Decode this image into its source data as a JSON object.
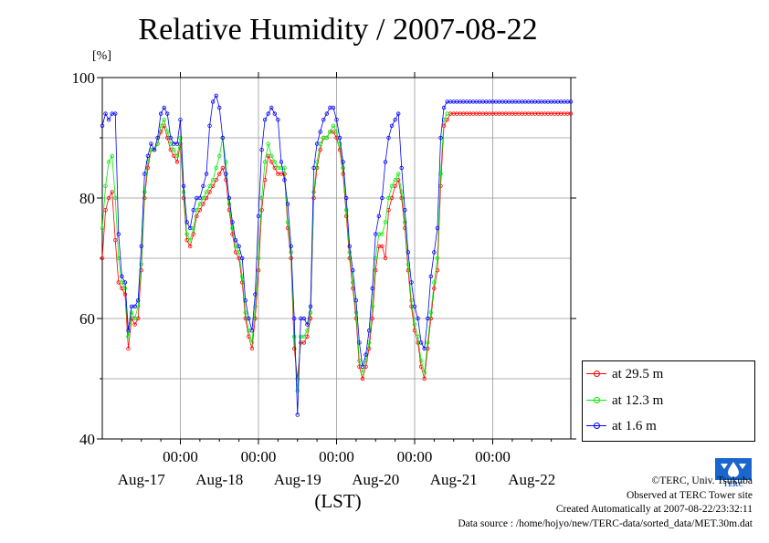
{
  "chart_data": {
    "type": "line",
    "title": "Relative Humidity / 2007-08-22",
    "ylabel": "[%]",
    "xlabel": "(LST)",
    "ylim": [
      40,
      100
    ],
    "y_ticks": [
      40,
      60,
      80,
      100
    ],
    "x_range_hours": [
      0,
      144
    ],
    "x_tick_labels": [
      "00:00",
      "00:00",
      "00:00",
      "00:00",
      "00:00"
    ],
    "x_date_labels": [
      "Aug-17",
      "Aug-18",
      "Aug-19",
      "Aug-20",
      "Aug-21",
      "Aug-22"
    ],
    "legend_position": "bottom-right-outside",
    "grid": true,
    "series": [
      {
        "name": "at 29.5 m",
        "color": "#ff0000",
        "x": [
          0,
          1,
          2,
          3,
          4,
          5,
          6,
          7,
          8,
          9,
          10,
          11,
          12,
          13,
          14,
          15,
          16,
          17,
          18,
          19,
          20,
          21,
          22,
          23,
          24,
          25,
          26,
          27,
          28,
          29,
          30,
          31,
          32,
          33,
          34,
          35,
          36,
          37,
          38,
          39,
          40,
          41,
          42,
          43,
          44,
          45,
          46,
          47,
          48,
          49,
          50,
          51,
          52,
          53,
          54,
          55,
          56,
          57,
          58,
          59,
          60,
          61,
          62,
          63,
          64,
          65,
          66,
          67,
          68,
          69,
          70,
          71,
          72,
          73,
          74,
          75,
          76,
          77,
          78,
          79,
          80,
          81,
          82,
          83,
          84,
          85,
          86,
          87,
          88,
          89,
          90,
          91,
          92,
          93,
          94,
          95,
          96,
          97,
          98,
          99,
          100,
          101,
          102,
          103,
          104,
          105,
          106,
          107,
          108,
          109,
          110,
          111,
          112,
          113,
          114,
          115,
          116,
          117,
          118,
          119,
          120,
          121,
          122,
          123,
          124,
          125,
          126,
          127,
          128,
          129,
          130,
          131,
          132,
          133,
          134,
          135,
          136,
          137,
          138,
          139,
          140,
          141,
          142,
          143,
          144
        ],
        "values": [
          70,
          78,
          80,
          81,
          73,
          66,
          65,
          64,
          55,
          60,
          59,
          60,
          68,
          80,
          85,
          88,
          88,
          89,
          91,
          92,
          90,
          88,
          87,
          86,
          89,
          80,
          73,
          72,
          74,
          77,
          78,
          79,
          80,
          81,
          82,
          83,
          84,
          85,
          83,
          78,
          74,
          71,
          70,
          66,
          60,
          57,
          55,
          60,
          68,
          78,
          83,
          87,
          86,
          85,
          84,
          84,
          84,
          75,
          70,
          55,
          50,
          56,
          56,
          57,
          60,
          80,
          85,
          88,
          90,
          90,
          91,
          91,
          90,
          88,
          84,
          77,
          70,
          65,
          60,
          52,
          50,
          52,
          55,
          60,
          68,
          72,
          72,
          70,
          78,
          80,
          82,
          83,
          80,
          75,
          68,
          62,
          58,
          56,
          52,
          50,
          55,
          60,
          65,
          68,
          82,
          92,
          93,
          94,
          94,
          94,
          94,
          94,
          94,
          94,
          94,
          94,
          94,
          94,
          94,
          94,
          94,
          94,
          94,
          94,
          94,
          94,
          94,
          94,
          94,
          94,
          94,
          94,
          94,
          94,
          94,
          94,
          94,
          94,
          94,
          94,
          94,
          94,
          94,
          94,
          94
        ]
      },
      {
        "name": "at 12.3 m",
        "color": "#00ee00",
        "x": [
          0,
          1,
          2,
          3,
          4,
          5,
          6,
          7,
          8,
          9,
          10,
          11,
          12,
          13,
          14,
          15,
          16,
          17,
          18,
          19,
          20,
          21,
          22,
          23,
          24,
          25,
          26,
          27,
          28,
          29,
          30,
          31,
          32,
          33,
          34,
          35,
          36,
          37,
          38,
          39,
          40,
          41,
          42,
          43,
          44,
          45,
          46,
          47,
          48,
          49,
          50,
          51,
          52,
          53,
          54,
          55,
          56,
          57,
          58,
          59,
          60,
          61,
          62,
          63,
          64,
          65,
          66,
          67,
          68,
          69,
          70,
          71,
          72,
          73,
          74,
          75,
          76,
          77,
          78,
          79,
          80,
          81,
          82,
          83,
          84,
          85,
          86,
          87,
          88,
          89,
          90,
          91,
          92,
          93,
          94,
          95,
          96,
          97,
          98,
          99,
          100,
          101,
          102,
          103,
          104,
          105,
          106
        ],
        "values": [
          75,
          82,
          86,
          87,
          80,
          70,
          66,
          65,
          57,
          61,
          60,
          62,
          69,
          81,
          86,
          88,
          88,
          89,
          92,
          93,
          91,
          89,
          88,
          87,
          90,
          81,
          74,
          73,
          75,
          78,
          79,
          80,
          81,
          82,
          83,
          85,
          87,
          90,
          86,
          79,
          75,
          72,
          71,
          67,
          61,
          58,
          56,
          62,
          70,
          80,
          86,
          89,
          87,
          86,
          85,
          85,
          85,
          76,
          71,
          57,
          48,
          57,
          57,
          58,
          61,
          81,
          86,
          89,
          90,
          90,
          91,
          92,
          91,
          89,
          85,
          78,
          71,
          66,
          61,
          53,
          51,
          53,
          56,
          62,
          70,
          74,
          74,
          76,
          80,
          82,
          83,
          84,
          81,
          76,
          69,
          63,
          59,
          57,
          53,
          51,
          56,
          61,
          66,
          70,
          84,
          93,
          94
        ]
      },
      {
        "name": "at 1.6 m",
        "color": "#0000ff",
        "x": [
          0,
          1,
          2,
          3,
          4,
          5,
          6,
          7,
          8,
          9,
          10,
          11,
          12,
          13,
          14,
          15,
          16,
          17,
          18,
          19,
          20,
          21,
          22,
          23,
          24,
          25,
          26,
          27,
          28,
          29,
          30,
          31,
          32,
          33,
          34,
          35,
          36,
          37,
          38,
          39,
          40,
          41,
          42,
          43,
          44,
          45,
          46,
          47,
          48,
          49,
          50,
          51,
          52,
          53,
          54,
          55,
          56,
          57,
          58,
          59,
          60,
          61,
          62,
          63,
          64,
          65,
          66,
          67,
          68,
          69,
          70,
          71,
          72,
          73,
          74,
          75,
          76,
          77,
          78,
          79,
          80,
          81,
          82,
          83,
          84,
          85,
          86,
          87,
          88,
          89,
          90,
          91,
          92,
          93,
          94,
          95,
          96,
          97,
          98,
          99,
          100,
          101,
          102,
          103,
          104,
          105,
          106,
          107,
          108,
          109,
          110,
          111,
          112,
          113,
          114,
          115,
          116,
          117,
          118,
          119,
          120,
          121,
          122,
          123,
          124,
          125,
          126,
          127,
          128,
          129,
          130,
          131,
          132,
          133,
          134,
          135,
          136,
          137,
          138,
          139,
          140,
          141,
          142,
          143,
          144
        ],
        "values": [
          92,
          94,
          93,
          94,
          94,
          74,
          67,
          66,
          58,
          62,
          62,
          63,
          72,
          84,
          87,
          89,
          88,
          90,
          94,
          95,
          94,
          90,
          89,
          89,
          93,
          82,
          76,
          75,
          78,
          80,
          80,
          82,
          84,
          92,
          96,
          97,
          95,
          90,
          84,
          80,
          76,
          73,
          72,
          70,
          63,
          60,
          58,
          64,
          77,
          88,
          93,
          94,
          95,
          94,
          93,
          86,
          83,
          79,
          72,
          60,
          44,
          60,
          60,
          59,
          62,
          85,
          89,
          91,
          93,
          94,
          95,
          95,
          93,
          90,
          86,
          80,
          72,
          68,
          63,
          56,
          52,
          54,
          58,
          65,
          74,
          77,
          80,
          86,
          90,
          92,
          93,
          94,
          85,
          78,
          71,
          66,
          62,
          60,
          56,
          55,
          60,
          67,
          71,
          75,
          90,
          95,
          96,
          96,
          96,
          96,
          96,
          96,
          96,
          96,
          96,
          96,
          96,
          96,
          96,
          96,
          96,
          96,
          96,
          96,
          96,
          96,
          96,
          96,
          96,
          96,
          96,
          96,
          96,
          96,
          96,
          96,
          96,
          96,
          96,
          96,
          96,
          96,
          96,
          96,
          96
        ]
      }
    ]
  },
  "credits": {
    "copyright": "©TERC, Univ. Tsukuba",
    "observed": "Observed at TERC Tower site",
    "created": "Created Automatically at 2007-08-22/23:32:11",
    "source": "Data source : /home/hojyo/new/TERC-data/sorted_data/MET.30m.dat"
  },
  "logo": {
    "text": "TERC",
    "icon": "terc-logo-icon",
    "color": "#1a66cc"
  }
}
